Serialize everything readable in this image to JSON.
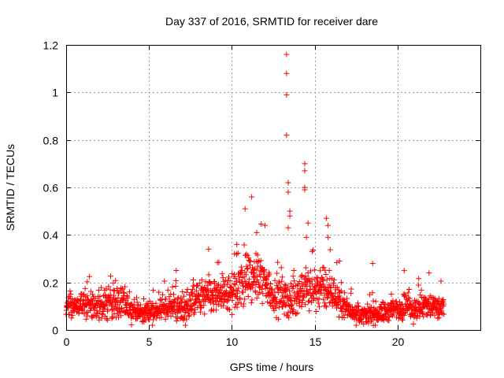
{
  "chart_data": {
    "type": "scatter",
    "title": "Day 337 of 2016, SRMTID for receiver dare",
    "xlabel": "GPS time / hours",
    "ylabel": "SRMTID / TECUs",
    "xlim": [
      0,
      25
    ],
    "ylim": [
      0,
      1.2
    ],
    "xticks": [
      0,
      5,
      10,
      15,
      20
    ],
    "xtick_labels": [
      "0",
      "5",
      "10",
      "15",
      "20"
    ],
    "yticks": [
      0,
      0.2,
      0.4,
      0.6,
      0.8,
      1.0,
      1.2
    ],
    "ytick_labels": [
      "0",
      "0.2",
      "0.4",
      "0.6",
      "0.8",
      "1",
      "1.2"
    ],
    "grid": true,
    "marker": "+",
    "series": [
      {
        "name": "SRMTID",
        "color": "#ff0000",
        "x_start": 0.0,
        "x_end": 22.8,
        "envelope_x": [
          0,
          0.5,
          1,
          1.5,
          2,
          2.5,
          3,
          3.5,
          4,
          4.5,
          5,
          5.5,
          6,
          6.5,
          7,
          7.5,
          8,
          8.5,
          9,
          9.5,
          10,
          10.5,
          11,
          11.5,
          12,
          12.5,
          13,
          13.5,
          14,
          14.5,
          15,
          15.5,
          16,
          16.5,
          17,
          17.5,
          18,
          18.5,
          19,
          19.5,
          20,
          20.5,
          21,
          21.5,
          22,
          22.5,
          22.8
        ],
        "envelope_y": [
          0.09,
          0.1,
          0.11,
          0.1,
          0.1,
          0.11,
          0.12,
          0.1,
          0.08,
          0.07,
          0.08,
          0.08,
          0.09,
          0.1,
          0.09,
          0.11,
          0.13,
          0.14,
          0.14,
          0.15,
          0.16,
          0.19,
          0.21,
          0.22,
          0.2,
          0.15,
          0.14,
          0.12,
          0.15,
          0.17,
          0.18,
          0.17,
          0.16,
          0.12,
          0.09,
          0.07,
          0.06,
          0.07,
          0.07,
          0.08,
          0.09,
          0.1,
          0.09,
          0.1,
          0.1,
          0.09,
          0.09
        ],
        "spread": [
          0.04,
          0.04,
          0.05,
          0.05,
          0.05,
          0.06,
          0.06,
          0.05,
          0.04,
          0.04,
          0.04,
          0.04,
          0.05,
          0.05,
          0.05,
          0.06,
          0.07,
          0.08,
          0.07,
          0.07,
          0.08,
          0.1,
          0.1,
          0.1,
          0.09,
          0.07,
          0.07,
          0.06,
          0.07,
          0.08,
          0.08,
          0.08,
          0.07,
          0.05,
          0.04,
          0.03,
          0.03,
          0.04,
          0.04,
          0.04,
          0.05,
          0.05,
          0.05,
          0.05,
          0.05,
          0.05,
          0.05
        ],
        "notable_points": [
          {
            "x": 8.6,
            "y": 0.34
          },
          {
            "x": 10.3,
            "y": 0.36
          },
          {
            "x": 10.8,
            "y": 0.51
          },
          {
            "x": 11.2,
            "y": 0.56
          },
          {
            "x": 11.5,
            "y": 0.41
          },
          {
            "x": 12.0,
            "y": 0.44
          },
          {
            "x": 13.3,
            "y": 1.16
          },
          {
            "x": 13.3,
            "y": 1.08
          },
          {
            "x": 13.3,
            "y": 0.99
          },
          {
            "x": 13.3,
            "y": 0.82
          },
          {
            "x": 13.4,
            "y": 0.62
          },
          {
            "x": 13.4,
            "y": 0.58
          },
          {
            "x": 13.5,
            "y": 0.5
          },
          {
            "x": 13.5,
            "y": 0.48
          },
          {
            "x": 13.4,
            "y": 0.43
          },
          {
            "x": 14.4,
            "y": 0.7
          },
          {
            "x": 14.4,
            "y": 0.67
          },
          {
            "x": 14.4,
            "y": 0.6
          },
          {
            "x": 14.4,
            "y": 0.59
          },
          {
            "x": 14.6,
            "y": 0.45
          },
          {
            "x": 14.5,
            "y": 0.39
          },
          {
            "x": 15.7,
            "y": 0.47
          },
          {
            "x": 15.8,
            "y": 0.44
          },
          {
            "x": 15.8,
            "y": 0.39
          },
          {
            "x": 16.5,
            "y": 0.29
          },
          {
            "x": 18.5,
            "y": 0.28
          },
          {
            "x": 20.4,
            "y": 0.25
          },
          {
            "x": 21.9,
            "y": 0.24
          },
          {
            "x": 7.2,
            "y": 0.02
          },
          {
            "x": 17.5,
            "y": 0.02
          }
        ]
      }
    ]
  }
}
